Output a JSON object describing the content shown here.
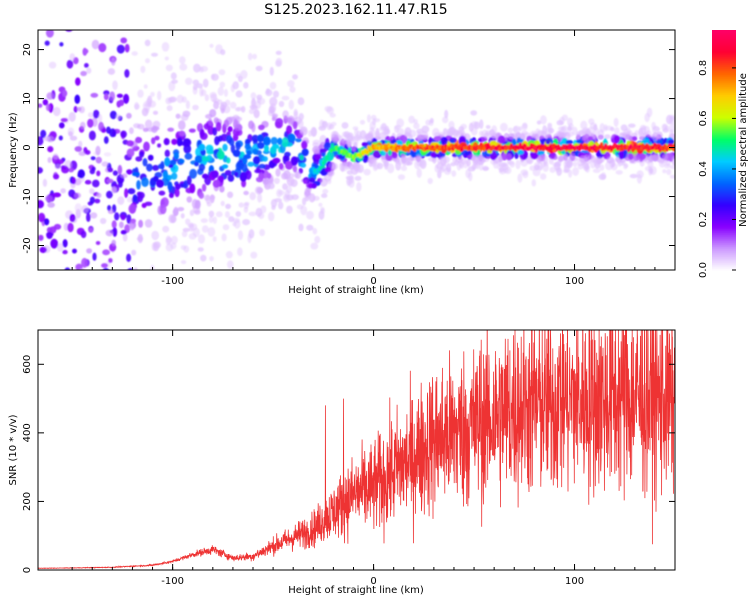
{
  "chart_data": [
    {
      "type": "heatmap",
      "title": "S125.2023.162.11.47.R15",
      "xlabel": "Height of straight line (km)",
      "ylabel": "Frequency (Hz)",
      "xlim": [
        -167,
        150
      ],
      "ylim": [
        -25,
        24
      ],
      "x_ticks": [
        "-100",
        "0",
        "100"
      ],
      "y_ticks": [
        "-20",
        "-10",
        "0",
        "10",
        "20"
      ],
      "colorbar": {
        "label": "Normalized spectral amplitude",
        "range": [
          0,
          0.95
        ],
        "ticks": [
          "0.0",
          "0.2",
          "0.4",
          "0.6",
          "0.8"
        ],
        "colors": [
          "#ffffff",
          "#cc99ff",
          "#8800ff",
          "#3300ff",
          "#0066ff",
          "#00ccff",
          "#00ff66",
          "#ccff00",
          "#ffcc00",
          "#ff6600",
          "#ff0033",
          "#ff0066"
        ]
      },
      "ridge": {
        "x": [
          -160,
          -140,
          -120,
          -110,
          -100,
          -90,
          -80,
          -72,
          -65,
          -55,
          -45,
          -38,
          -33,
          -28,
          -25,
          -20,
          -15,
          -10,
          -5,
          0,
          20,
          50,
          80,
          110,
          150
        ],
        "y": [
          -9,
          -8,
          -7,
          -6,
          -4,
          -3,
          -1,
          -2,
          -2,
          -1,
          1,
          0,
          -4,
          -5,
          -3,
          0,
          -1,
          -2,
          -1,
          0,
          0,
          0,
          0,
          0,
          0
        ],
        "peak_amplitude": [
          0.2,
          0.25,
          0.3,
          0.35,
          0.4,
          0.4,
          0.45,
          0.45,
          0.45,
          0.45,
          0.45,
          0.45,
          0.45,
          0.5,
          0.5,
          0.55,
          0.6,
          0.6,
          0.7,
          0.75,
          0.85,
          0.9,
          0.95,
          0.95,
          0.9
        ]
      }
    },
    {
      "type": "line",
      "xlabel": "Height of straight line (km)",
      "ylabel": "SNR (10 * v/v)",
      "xlim": [
        -167,
        150
      ],
      "ylim": [
        0,
        700
      ],
      "x_ticks": [
        "-100",
        "0",
        "100"
      ],
      "y_ticks": [
        "0",
        "200",
        "400",
        "600"
      ],
      "color": "#ee3333",
      "series": [
        {
          "x": [
            -167,
            -150,
            -130,
            -110,
            -100,
            -90,
            -80,
            -70,
            -60,
            -50,
            -40,
            -30,
            -20,
            -10,
            0,
            10,
            20,
            30,
            40,
            50,
            60,
            70,
            80,
            90,
            100,
            110,
            120,
            130,
            140,
            150
          ],
          "y": [
            5,
            6,
            8,
            14,
            25,
            45,
            60,
            35,
            40,
            70,
            95,
            120,
            170,
            220,
            240,
            290,
            330,
            380,
            400,
            420,
            445,
            470,
            485,
            490,
            495,
            500,
            505,
            505,
            500,
            495
          ],
          "peaks": [
            {
              "x": -24,
              "y": 480
            },
            {
              "x": -15,
              "y": 500
            },
            {
              "x": 53,
              "y": 640
            },
            {
              "x": 93,
              "y": 690
            },
            {
              "x": 133,
              "y": 640
            }
          ]
        }
      ]
    }
  ]
}
